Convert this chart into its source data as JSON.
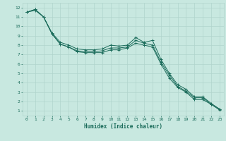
{
  "xlabel": "Humidex (Indice chaleur)",
  "bg_color": "#c8e8e0",
  "grid_color": "#b0d4cc",
  "line_color": "#1a6b5a",
  "xlim": [
    -0.5,
    23.5
  ],
  "ylim": [
    0.5,
    12.5
  ],
  "xticks": [
    0,
    1,
    2,
    3,
    4,
    5,
    6,
    7,
    8,
    9,
    10,
    11,
    12,
    13,
    14,
    15,
    16,
    17,
    18,
    19,
    20,
    21,
    22,
    23
  ],
  "yticks": [
    1,
    2,
    3,
    4,
    5,
    6,
    7,
    8,
    9,
    10,
    11,
    12
  ],
  "line_top": [
    11.5,
    11.8,
    11.0,
    9.3,
    8.3,
    8.0,
    7.6,
    7.5,
    7.5,
    7.6,
    8.0,
    7.9,
    8.0,
    8.8,
    8.3,
    8.5,
    6.5,
    5.0,
    3.8,
    3.3,
    2.5,
    2.5,
    1.8,
    1.2
  ],
  "line_mid": [
    11.5,
    11.8,
    11.0,
    9.2,
    8.1,
    7.8,
    7.4,
    7.3,
    7.3,
    7.4,
    7.7,
    7.7,
    7.8,
    8.5,
    8.2,
    8.0,
    6.2,
    4.8,
    3.6,
    3.1,
    2.4,
    2.4,
    1.7,
    1.2
  ],
  "line_bot": [
    11.5,
    11.7,
    11.0,
    9.2,
    8.1,
    7.8,
    7.3,
    7.2,
    7.2,
    7.2,
    7.5,
    7.5,
    7.7,
    8.2,
    8.0,
    7.8,
    6.0,
    4.5,
    3.5,
    3.0,
    2.2,
    2.2,
    1.7,
    1.1
  ]
}
